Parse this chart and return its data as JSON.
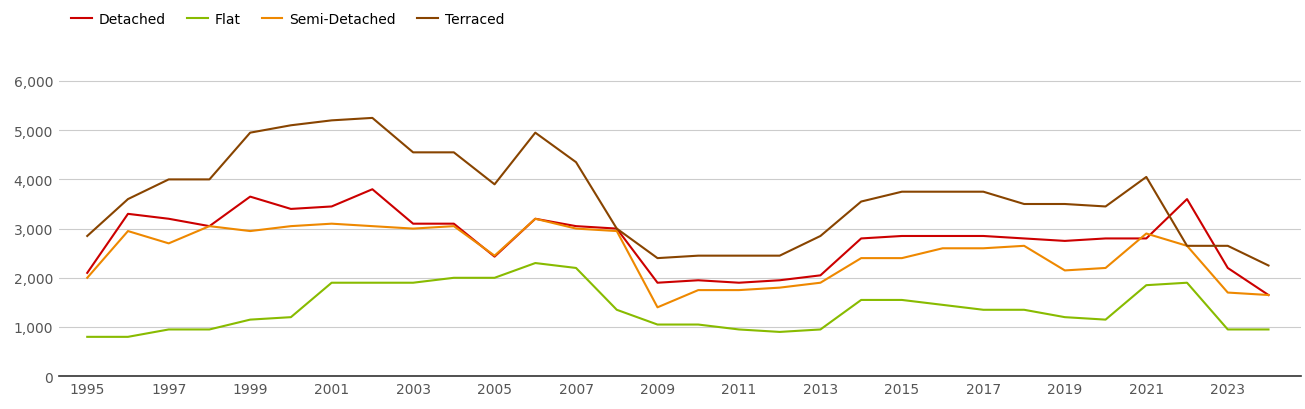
{
  "years": [
    1995,
    1996,
    1997,
    1998,
    1999,
    2000,
    2001,
    2002,
    2003,
    2004,
    2005,
    2006,
    2007,
    2008,
    2009,
    2010,
    2011,
    2012,
    2013,
    2014,
    2015,
    2016,
    2017,
    2018,
    2019,
    2020,
    2021,
    2022,
    2023,
    2024
  ],
  "detached": [
    2100,
    3300,
    3200,
    3050,
    3650,
    3400,
    3450,
    3800,
    3100,
    3100,
    2430,
    3200,
    3050,
    3000,
    1900,
    1950,
    1900,
    1950,
    2050,
    2800,
    2850,
    2850,
    2850,
    2800,
    2750,
    2800,
    2800,
    3600,
    2200,
    1650
  ],
  "flat": [
    800,
    800,
    950,
    950,
    1150,
    1200,
    1900,
    1900,
    1900,
    2000,
    2000,
    2300,
    2200,
    1350,
    1050,
    1050,
    950,
    900,
    950,
    1550,
    1550,
    1450,
    1350,
    1350,
    1200,
    1150,
    1850,
    1900,
    950,
    950
  ],
  "semi_detached": [
    2000,
    2950,
    2700,
    3050,
    2950,
    3050,
    3100,
    3050,
    3000,
    3050,
    2450,
    3200,
    3000,
    2950,
    1400,
    1750,
    1750,
    1800,
    1900,
    2400,
    2400,
    2600,
    2600,
    2650,
    2150,
    2200,
    2900,
    2650,
    1700,
    1650
  ],
  "terraced": [
    2850,
    3600,
    4000,
    4000,
    4950,
    5100,
    5200,
    5250,
    4550,
    4550,
    3900,
    4950,
    4350,
    3000,
    2400,
    2450,
    2450,
    2450,
    2850,
    3550,
    3750,
    3750,
    3750,
    3500,
    3500,
    3450,
    4050,
    2650,
    2650,
    2250
  ],
  "colors": {
    "detached": "#cc0000",
    "flat": "#88bb00",
    "semi_detached": "#ee8800",
    "terraced": "#884400"
  },
  "ylim": [
    0,
    6500
  ],
  "yticks": [
    0,
    1000,
    2000,
    3000,
    4000,
    5000,
    6000
  ],
  "ytick_labels": [
    "0",
    "1,000",
    "2,000",
    "3,000",
    "4,000",
    "5,000",
    "6,000"
  ],
  "xtick_years": [
    1995,
    1997,
    1999,
    2001,
    2003,
    2005,
    2007,
    2009,
    2011,
    2013,
    2015,
    2017,
    2019,
    2021,
    2023
  ],
  "line_width": 1.5,
  "background_color": "#ffffff",
  "grid_color": "#cccccc"
}
